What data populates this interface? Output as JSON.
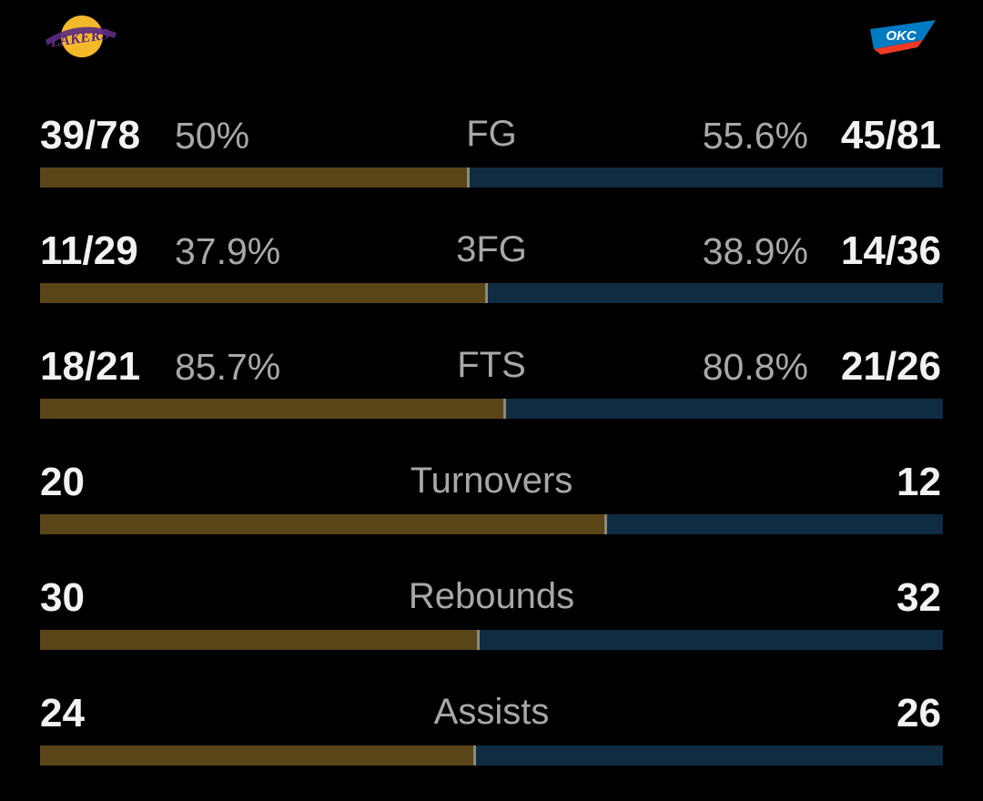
{
  "colors": {
    "home_bar": "#5a4519",
    "away_bar": "#102c42",
    "background": "#000000"
  },
  "teams": {
    "home": {
      "name": "Lakers",
      "logo_icon": "lakers-logo",
      "logo_text": "LAKERS"
    },
    "away": {
      "name": "OKC",
      "logo_icon": "okc-thunder-logo",
      "logo_text": "OKC"
    }
  },
  "stats": [
    {
      "label": "FG",
      "home_made": "39/78",
      "home_pct": "50%",
      "away_pct": "55.6%",
      "away_made": "45/81",
      "home_share": 0.473
    },
    {
      "label": "3FG",
      "home_made": "11/29",
      "home_pct": "37.9%",
      "away_pct": "38.9%",
      "away_made": "14/36",
      "home_share": 0.493
    },
    {
      "label": "FTS",
      "home_made": "18/21",
      "home_pct": "85.7%",
      "away_pct": "80.8%",
      "away_made": "21/26",
      "home_share": 0.513
    },
    {
      "label": "Turnovers",
      "home_made": "20",
      "home_pct": "",
      "away_pct": "",
      "away_made": "12",
      "home_share": 0.625
    },
    {
      "label": "Rebounds",
      "home_made": "30",
      "home_pct": "",
      "away_pct": "",
      "away_made": "32",
      "home_share": 0.484
    },
    {
      "label": "Assists",
      "home_made": "24",
      "home_pct": "",
      "away_pct": "",
      "away_made": "26",
      "home_share": 0.48
    }
  ]
}
